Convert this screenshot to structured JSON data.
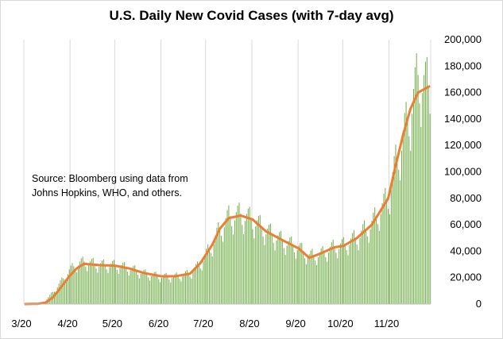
{
  "chart_data": {
    "type": "bar",
    "title": "U.S. Daily New Covid Cases (with 7-day avg)",
    "annotation": [
      "Source:  Bloomberg using data from",
      "Johns Hopkins, WHO, and others."
    ],
    "x_ticks": [
      "3/20",
      "4/20",
      "5/20",
      "6/20",
      "7/20",
      "8/20",
      "9/20",
      "10/20",
      "11/20"
    ],
    "y_ticks": [
      "0",
      "20,000",
      "40,000",
      "60,000",
      "80,000",
      "100,000",
      "120,000",
      "140,000",
      "160,000",
      "180,000",
      "200,000"
    ],
    "ylim": [
      0,
      200000
    ],
    "x_start": "2020-03-01",
    "x_end": "2020-11-28",
    "grid": "vertical",
    "series": [
      {
        "kind": "bar",
        "color": "#70ad47",
        "comment": "daily new cases, monthly anchor values (estimated) with day-of-week variation",
        "anchors": [
          [
            "2020-03-01",
            0
          ],
          [
            "2020-03-10",
            300
          ],
          [
            "2020-03-15",
            2500
          ],
          [
            "2020-03-20",
            9000
          ],
          [
            "2020-03-25",
            16000
          ],
          [
            "2020-03-31",
            25000
          ],
          [
            "2020-04-05",
            30000
          ],
          [
            "2020-04-10",
            31500
          ],
          [
            "2020-04-20",
            29500
          ],
          [
            "2020-05-01",
            29000
          ],
          [
            "2020-05-10",
            27000
          ],
          [
            "2020-05-20",
            23000
          ],
          [
            "2020-06-01",
            20500
          ],
          [
            "2020-06-10",
            20500
          ],
          [
            "2020-06-20",
            23000
          ],
          [
            "2020-06-27",
            30000
          ],
          [
            "2020-07-05",
            45000
          ],
          [
            "2020-07-10",
            56000
          ],
          [
            "2020-07-16",
            65000
          ],
          [
            "2020-07-24",
            67000
          ],
          [
            "2020-08-01",
            63000
          ],
          [
            "2020-08-10",
            55000
          ],
          [
            "2020-08-20",
            48000
          ],
          [
            "2020-09-01",
            42000
          ],
          [
            "2020-09-08",
            36000
          ],
          [
            "2020-09-15",
            37000
          ],
          [
            "2020-09-25",
            43000
          ],
          [
            "2020-10-01",
            44000
          ],
          [
            "2020-10-10",
            50000
          ],
          [
            "2020-10-20",
            60000
          ],
          [
            "2020-10-31",
            80000
          ],
          [
            "2020-11-05",
            105000
          ],
          [
            "2020-11-10",
            125000
          ],
          [
            "2020-11-15",
            145000
          ],
          [
            "2020-11-20",
            170000
          ],
          [
            "2020-11-28",
            160000
          ]
        ]
      },
      {
        "kind": "line",
        "name": "7-day avg",
        "color": "#ed7d31",
        "points": [
          [
            "2020-03-01",
            0
          ],
          [
            "2020-03-10",
            200
          ],
          [
            "2020-03-15",
            1000
          ],
          [
            "2020-03-20",
            5000
          ],
          [
            "2020-03-25",
            12000
          ],
          [
            "2020-03-31",
            21000
          ],
          [
            "2020-04-05",
            27000
          ],
          [
            "2020-04-10",
            30500
          ],
          [
            "2020-04-20",
            29500
          ],
          [
            "2020-05-01",
            29000
          ],
          [
            "2020-05-10",
            27000
          ],
          [
            "2020-05-20",
            23500
          ],
          [
            "2020-06-01",
            21000
          ],
          [
            "2020-06-10",
            21000
          ],
          [
            "2020-06-20",
            23000
          ],
          [
            "2020-06-27",
            31000
          ],
          [
            "2020-07-05",
            45000
          ],
          [
            "2020-07-10",
            57000
          ],
          [
            "2020-07-16",
            65000
          ],
          [
            "2020-07-24",
            67000
          ],
          [
            "2020-08-01",
            64000
          ],
          [
            "2020-08-10",
            55000
          ],
          [
            "2020-08-20",
            49000
          ],
          [
            "2020-09-01",
            42000
          ],
          [
            "2020-09-08",
            35000
          ],
          [
            "2020-09-15",
            38000
          ],
          [
            "2020-09-25",
            43000
          ],
          [
            "2020-10-01",
            44000
          ],
          [
            "2020-10-10",
            50000
          ],
          [
            "2020-10-20",
            60000
          ],
          [
            "2020-10-31",
            80000
          ],
          [
            "2020-11-05",
            105000
          ],
          [
            "2020-11-10",
            128000
          ],
          [
            "2020-11-15",
            148000
          ],
          [
            "2020-11-20",
            160000
          ],
          [
            "2020-11-28",
            165000
          ]
        ]
      }
    ]
  }
}
